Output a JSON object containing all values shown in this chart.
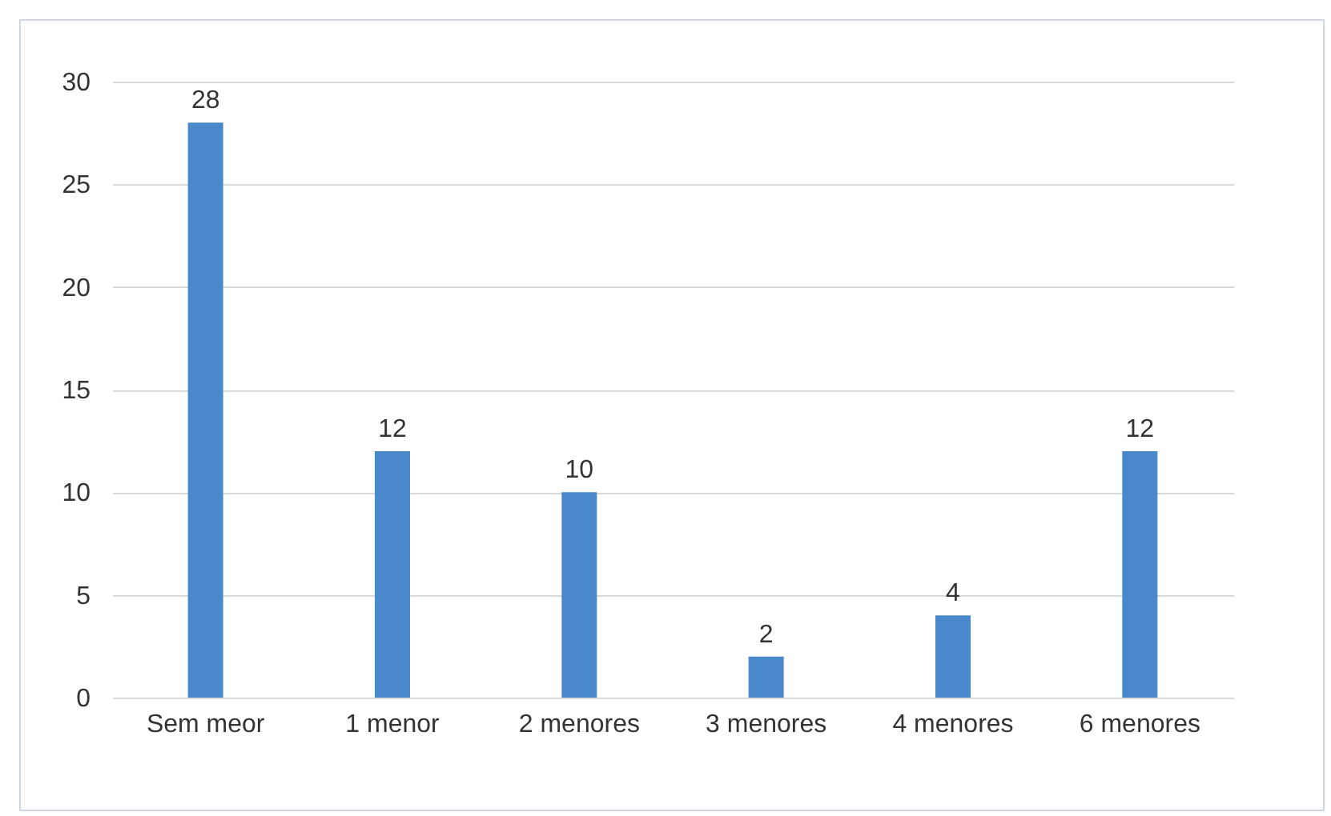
{
  "chart_data": {
    "type": "bar",
    "categories": [
      "Sem meor",
      "1 menor",
      "2 menores",
      "3 menores",
      "4 menores",
      "6 menores"
    ],
    "values": [
      28,
      12,
      10,
      2,
      4,
      12
    ],
    "color": "#4a88cc",
    "ylim": [
      0,
      30
    ],
    "yticks": [
      0,
      5,
      10,
      15,
      20,
      25,
      30
    ],
    "grid": "y",
    "data_labels": true
  }
}
